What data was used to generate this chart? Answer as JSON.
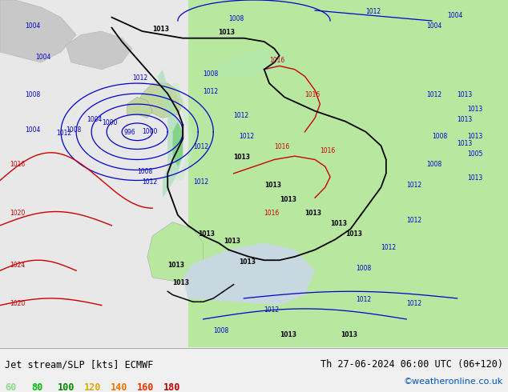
{
  "title_left": "Jet stream/SLP [kts] ECMWF",
  "title_right": "Th 27-06-2024 06:00 UTC (06+120)",
  "credit": "©weatheronline.co.uk",
  "legend_values": [
    60,
    80,
    100,
    120,
    140,
    160,
    180
  ],
  "legend_colors": [
    "#88dd88",
    "#00bb00",
    "#008800",
    "#ddaa00",
    "#ee7700",
    "#ee3300",
    "#bb0000"
  ],
  "bg_color": "#f0f0f0",
  "ocean_color": "#e8e8e8",
  "land_color": "#b8e8a0",
  "jet_green": "#90d890",
  "teal_jet": "#80d0b0",
  "isobar_blue": "#0000cc",
  "isobar_black": "#000000",
  "isobar_red": "#cc0000",
  "bottom_bar_color": "#e0e0e0",
  "credit_color": "#0055bb",
  "figsize": [
    6.34,
    4.9
  ],
  "dpi": 100
}
